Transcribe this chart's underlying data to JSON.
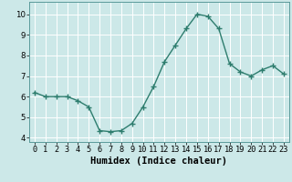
{
  "x": [
    0,
    1,
    2,
    3,
    4,
    5,
    6,
    7,
    8,
    9,
    10,
    11,
    12,
    13,
    14,
    15,
    16,
    17,
    18,
    19,
    20,
    21,
    22,
    23
  ],
  "y": [
    6.2,
    6.0,
    6.0,
    6.0,
    5.8,
    5.5,
    4.35,
    4.3,
    4.35,
    4.7,
    5.5,
    6.5,
    7.7,
    8.5,
    9.3,
    10.0,
    9.9,
    9.3,
    7.6,
    7.2,
    7.0,
    7.3,
    7.5,
    7.1
  ],
  "line_color": "#2e7d6e",
  "marker": "+",
  "marker_size": 4,
  "background_color": "#cce8e8",
  "grid_color": "#ffffff",
  "xlabel": "Humidex (Indice chaleur)",
  "ylabel": "",
  "xlim": [
    -0.5,
    23.5
  ],
  "ylim": [
    3.8,
    10.6
  ],
  "yticks": [
    4,
    5,
    6,
    7,
    8,
    9,
    10
  ],
  "xticks": [
    0,
    1,
    2,
    3,
    4,
    5,
    6,
    7,
    8,
    9,
    10,
    11,
    12,
    13,
    14,
    15,
    16,
    17,
    18,
    19,
    20,
    21,
    22,
    23
  ],
  "xlabel_fontsize": 7.5,
  "tick_fontsize": 6.2,
  "grid_linewidth": 0.7,
  "line_width": 1.0
}
